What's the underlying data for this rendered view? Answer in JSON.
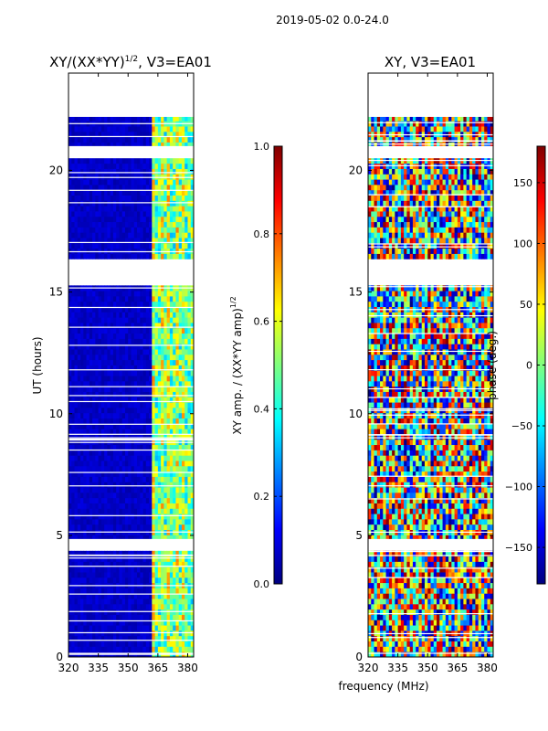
{
  "suptitle": "2019-05-02 0.0-24.0",
  "colors": {
    "jet": [
      "#00007f",
      "#0000ff",
      "#007fff",
      "#00ffff",
      "#7fff7f",
      "#ffff00",
      "#ff7f00",
      "#ff0000",
      "#7f0000"
    ]
  },
  "chart_data": [
    {
      "type": "heatmap",
      "title_main": "XY/(XX*YY)",
      "title_sup": "1/2",
      "title_tail": ", V3=EA01",
      "xlabel": "",
      "ylabel": "UT (hours)",
      "xlim": [
        320,
        383
      ],
      "ylim": [
        0,
        24
      ],
      "xticks": [
        320,
        335,
        350,
        365,
        380
      ],
      "yticks": [
        0,
        5,
        10,
        15,
        20
      ],
      "data_gaps_hours": [
        [
          4.45,
          4.85
        ],
        [
          15.3,
          16.3
        ],
        [
          20.5,
          21.0
        ],
        [
          22.2,
          24.0
        ]
      ],
      "description_values": "normalized XY amplitude, mostly ~0.05 below 362 MHz, ~0.4-0.6 in 362-380 MHz",
      "colorbar": {
        "label_main": "XY amp. / (XX*YY amp)",
        "label_sup": "1/2",
        "min": 0.0,
        "max": 1.0,
        "ticks": [
          "0.0",
          "0.2",
          "0.4",
          "0.6",
          "0.8",
          "1.0"
        ]
      }
    },
    {
      "type": "heatmap",
      "title": "XY, V3=EA01",
      "xlabel": "frequency (MHz)",
      "ylabel": "",
      "xlim": [
        320,
        383
      ],
      "ylim": [
        0,
        24
      ],
      "xticks": [
        320,
        335,
        350,
        365,
        380
      ],
      "yticks": [
        0,
        5,
        10,
        15,
        20
      ],
      "data_gaps_hours": [
        [
          4.45,
          4.85
        ],
        [
          15.3,
          16.3
        ],
        [
          20.5,
          21.0
        ],
        [
          22.2,
          24.0
        ]
      ],
      "description_values": "XY phase wrapping across frequency, full -180 to 180 deg range",
      "colorbar": {
        "label": "phase (deg.)",
        "min": -180,
        "max": 180,
        "ticks": [
          "−150",
          "−100",
          "−50",
          "0",
          "50",
          "100",
          "150"
        ],
        "tick_values": [
          -150,
          -100,
          -50,
          0,
          50,
          100,
          150
        ]
      }
    }
  ]
}
